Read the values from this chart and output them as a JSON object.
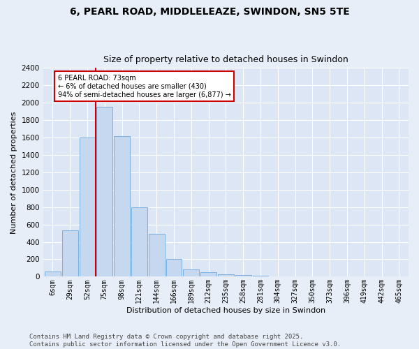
{
  "title_line1": "6, PEARL ROAD, MIDDLELEAZE, SWINDON, SN5 5TE",
  "title_line2": "Size of property relative to detached houses in Swindon",
  "xlabel": "Distribution of detached houses by size in Swindon",
  "ylabel": "Number of detached properties",
  "categories": [
    "6sqm",
    "29sqm",
    "52sqm",
    "75sqm",
    "98sqm",
    "121sqm",
    "144sqm",
    "166sqm",
    "189sqm",
    "212sqm",
    "235sqm",
    "258sqm",
    "281sqm",
    "304sqm",
    "327sqm",
    "350sqm",
    "373sqm",
    "396sqm",
    "419sqm",
    "442sqm",
    "465sqm"
  ],
  "values": [
    60,
    530,
    1600,
    1950,
    1620,
    800,
    490,
    200,
    80,
    50,
    30,
    20,
    10,
    5,
    2,
    2,
    0,
    0,
    0,
    0,
    0
  ],
  "bar_color": "#c5d8f0",
  "bar_edge_color": "#6fa8dc",
  "vline_color": "#cc0000",
  "vline_pos": 2.5,
  "annotation_text": "6 PEARL ROAD: 73sqm\n← 6% of detached houses are smaller (430)\n94% of semi-detached houses are larger (6,877) →",
  "annotation_box_color": "#ffffff",
  "annotation_box_edge": "#cc0000",
  "ylim": [
    0,
    2400
  ],
  "yticks": [
    0,
    200,
    400,
    600,
    800,
    1000,
    1200,
    1400,
    1600,
    1800,
    2000,
    2200,
    2400
  ],
  "background_color": "#e8eef7",
  "plot_background": "#dce6f5",
  "footer": "Contains HM Land Registry data © Crown copyright and database right 2025.\nContains public sector information licensed under the Open Government Licence v3.0.",
  "title_fontsize": 10,
  "subtitle_fontsize": 9,
  "axis_fontsize": 8,
  "tick_fontsize": 7.5,
  "footer_fontsize": 6.5
}
